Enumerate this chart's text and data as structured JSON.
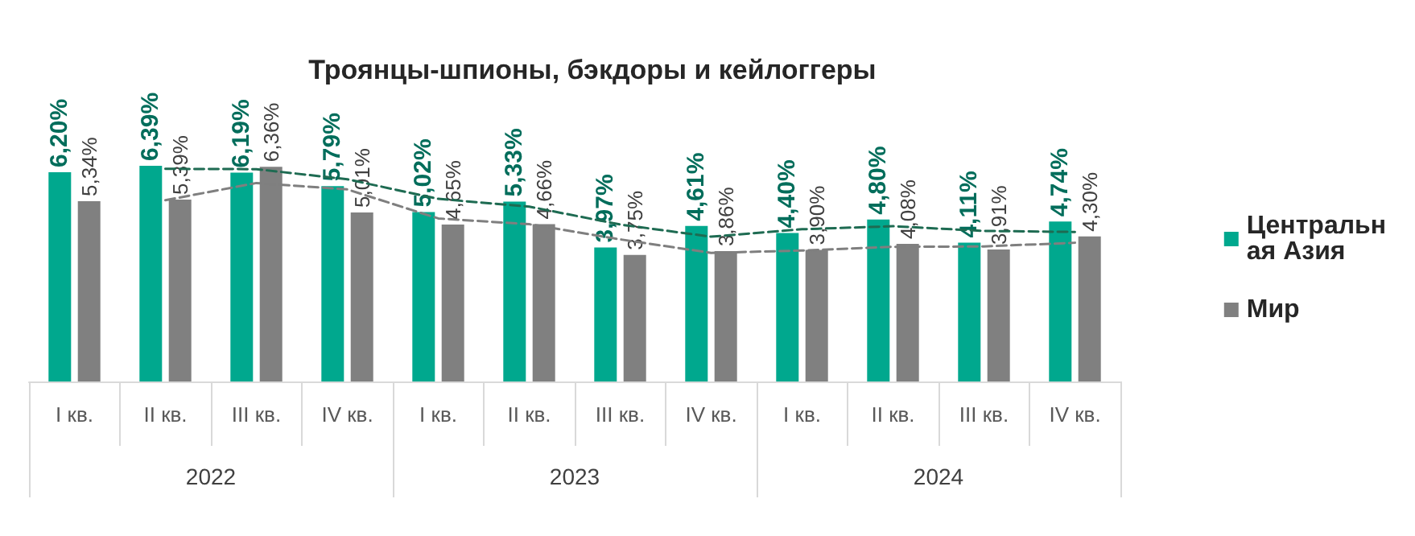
{
  "chart_data": {
    "type": "bar",
    "title": "Троянцы-шпионы, бэкдоры и кейлоггеры",
    "categories": [
      "I кв.",
      "II кв.",
      "III кв.",
      "IV кв.",
      "I кв.",
      "II кв.",
      "III кв.",
      "IV кв.",
      "I кв.",
      "II кв.",
      "III кв.",
      "IV кв."
    ],
    "annotations": [
      "2022",
      "2023",
      "2024"
    ],
    "series": [
      {
        "name": "Центральная Азия",
        "color": "#00a88e",
        "values": [
          6.2,
          6.39,
          6.19,
          5.79,
          5.02,
          5.33,
          3.97,
          4.61,
          4.4,
          4.8,
          4.11,
          4.74
        ],
        "value_labels": [
          "6,20%",
          "6,39%",
          "6,19%",
          "5,79%",
          "5,02%",
          "5,33%",
          "3,97%",
          "4,61%",
          "4,40%",
          "4,80%",
          "4,11%",
          "4,74%"
        ]
      },
      {
        "name": "Мир",
        "color": "#808080",
        "values": [
          5.34,
          5.39,
          6.36,
          5.01,
          4.65,
          4.66,
          3.75,
          3.86,
          3.9,
          4.08,
          3.91,
          4.3
        ],
        "value_labels": [
          "5,34%",
          "5,39%",
          "6,36%",
          "5,01%",
          "4,65%",
          "4,66%",
          "3,75%",
          "3,86%",
          "3,90%",
          "4,08%",
          "3,91%",
          "4,30%"
        ]
      },
      {
        "type": "line",
        "color": "#1e6b52",
        "line_style": "dashed",
        "marker": "none",
        "values": [
          null,
          6.3,
          6.29,
          5.99,
          5.41,
          5.18,
          4.65,
          4.29,
          4.51,
          4.6,
          4.46,
          4.43
        ]
      },
      {
        "type": "line",
        "color": "#7f7f7f",
        "line_style": "dashed",
        "marker": "none",
        "values": [
          null,
          5.37,
          5.88,
          5.69,
          4.83,
          4.66,
          4.21,
          3.81,
          3.88,
          3.99,
          4.0,
          4.11
        ]
      }
    ],
    "legend": "right"
  }
}
